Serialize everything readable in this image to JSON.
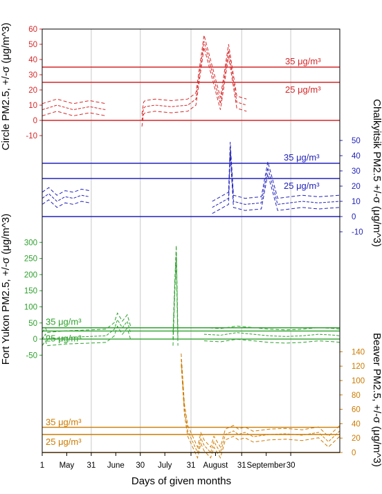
{
  "xaxis": {
    "label": "Days of given months",
    "ticks": [
      "1",
      "May",
      "31",
      "June",
      "30",
      "July",
      "31",
      "August",
      "31",
      "September",
      "30"
    ]
  },
  "chart_data": [
    {
      "type": "line",
      "id": "circle",
      "ylabel": "Circle PM2.5, +/-σ (μg/m^3)",
      "ylim": [
        -20,
        60
      ],
      "yticks": [
        60,
        50,
        40,
        30,
        20,
        10,
        0,
        -10
      ],
      "axis_side": "left",
      "color": "#d62728",
      "thresholds": [
        {
          "value": 35,
          "label": "35 μg/m³"
        },
        {
          "value": 25,
          "label": "25 μg/m³"
        }
      ],
      "series": [
        {
          "x": [
            1,
            10,
            20,
            30,
            40,
            50,
            60,
            62,
            63,
            64,
            70,
            80,
            90,
            95,
            100,
            110,
            115,
            120,
            126
          ],
          "values": [
            7,
            10,
            7,
            9,
            7,
            null,
            null,
            0,
            8,
            9,
            10,
            9,
            10,
            14,
            52,
            11,
            46,
            12,
            10
          ]
        }
      ]
    },
    {
      "type": "line",
      "id": "chalkyitsik",
      "ylabel": "Chalkyitsik PM2.5 +/-σ (μg/m^3)",
      "ylim": [
        -20,
        60
      ],
      "yticks": [
        50,
        40,
        30,
        20,
        10,
        0,
        -10
      ],
      "axis_side": "right",
      "color": "#2222bb",
      "thresholds": [
        {
          "value": 35,
          "label": "35 μg/m³"
        },
        {
          "value": 25,
          "label": "25 μg/m³"
        }
      ],
      "series": [
        {
          "x": [
            1,
            5,
            10,
            15,
            20,
            25,
            30,
            31,
            100,
            105,
            110,
            115,
            116,
            118,
            125,
            135,
            139,
            145,
            160,
            170,
            183
          ],
          "values": [
            12,
            15,
            10,
            13,
            12,
            14,
            13,
            null,
            null,
            6,
            9,
            12,
            45,
            10,
            8,
            9,
            32,
            8,
            10,
            9,
            10
          ]
        }
      ]
    },
    {
      "type": "line",
      "id": "fort-yukon",
      "ylabel": "Fort Yukon PM2.5, +/-σ (μg/m^3)",
      "ylim": [
        -60,
        350
      ],
      "yticks": [
        300,
        250,
        200,
        150,
        100,
        50,
        0,
        -50
      ],
      "axis_side": "left",
      "color": "#2ca02c",
      "thresholds": [
        {
          "value": 35,
          "label": "35 μg/m³"
        },
        {
          "value": 25,
          "label": "25 μg/m³"
        }
      ],
      "series": [
        {
          "x": [
            1,
            3,
            4,
            15,
            30,
            40,
            45,
            47,
            50,
            53,
            55,
            60,
            80,
            81,
            82,
            83,
            84,
            85,
            100,
            110,
            120,
            130,
            140,
            150,
            160,
            170,
            180,
            183
          ],
          "values": [
            0,
            15,
            0,
            5,
            8,
            10,
            30,
            60,
            35,
            55,
            20,
            null,
            null,
            0,
            150,
            270,
            0,
            null,
            15,
            12,
            20,
            15,
            10,
            8,
            10,
            15,
            12,
            10
          ]
        }
      ]
    },
    {
      "type": "line",
      "id": "beaver",
      "ylabel": "Beaver PM2.5, +/-σ (μg/m^3)",
      "ylim": [
        0,
        150
      ],
      "yticks": [
        140,
        120,
        100,
        80,
        60,
        40,
        20,
        0
      ],
      "axis_side": "right",
      "color": "#cc7a00",
      "thresholds": [
        {
          "value": 35,
          "label": "35 μg/m³"
        },
        {
          "value": 25,
          "label": "25 μg/m³"
        }
      ],
      "series": [
        {
          "x": [
            86,
            88,
            90,
            93,
            96,
            98,
            100,
            104,
            106,
            110,
            113,
            118,
            121,
            125,
            130,
            140,
            150,
            160,
            170,
            176,
            183
          ],
          "values": [
            130,
            60,
            30,
            15,
            0,
            20,
            10,
            0,
            15,
            0,
            25,
            30,
            25,
            28,
            22,
            25,
            26,
            24,
            28,
            15,
            30
          ]
        }
      ]
    }
  ]
}
